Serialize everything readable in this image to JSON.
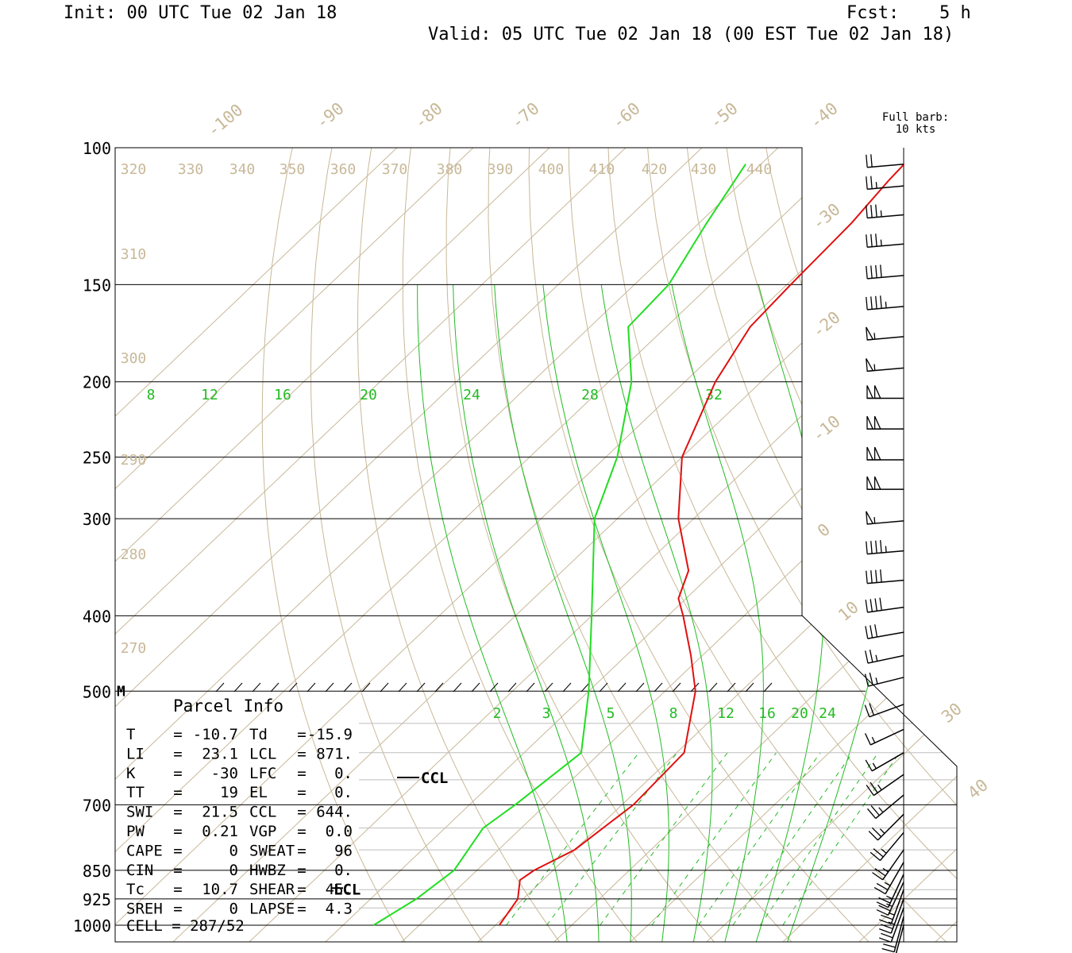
{
  "header": {
    "init": "Init: 00 UTC Tue 02 Jan 18",
    "fcst_label": "Fcst:",
    "fcst_value": "5 h",
    "valid": "Valid: 05 UTC Tue 02 Jan 18 (00 EST Tue 02 Jan 18)"
  },
  "barb_key": {
    "line1": "Full barb:",
    "line2": "10 kts"
  },
  "colors": {
    "temperature": "#e01010",
    "dewpoint": "#22dd22",
    "isotherm_dry_adiabat": "#c8b898",
    "moist_adiabat_mixing_ratio": "#22bb22",
    "isobar": "#000000"
  },
  "chart_data": {
    "type": "line",
    "title": "",
    "xlabel": "",
    "ylabel": "",
    "y_scale": "log-pressure",
    "ylim_hpa": [
      1000,
      100
    ],
    "pressure_ticks": [
      100,
      150,
      200,
      250,
      300,
      400,
      500,
      700,
      850,
      925,
      1000
    ],
    "isotherm_labels": [
      "-100",
      "-90",
      "-80",
      "-70",
      "-60",
      "-50",
      "-40",
      "-30",
      "-20",
      "-10",
      "0",
      "10",
      "30",
      "40"
    ],
    "theta_labels_top": [
      "320",
      "330",
      "340",
      "350",
      "360",
      "370",
      "380",
      "390",
      "400",
      "410",
      "420",
      "430",
      "440"
    ],
    "theta_labels_side": [
      "310",
      "300",
      "290",
      "280",
      "270"
    ],
    "moist_adiabat_labels": [
      "8",
      "12",
      "16",
      "20",
      "24",
      "28",
      "32"
    ],
    "mixing_ratio_labels": [
      "2",
      "3",
      "5",
      "8",
      "12",
      "16",
      "20",
      "24"
    ],
    "series": [
      {
        "name": "temperature",
        "points": [
          {
            "p": 1000,
            "t": -9.5
          },
          {
            "p": 925,
            "t": -10.7
          },
          {
            "p": 875,
            "t": -13.0
          },
          {
            "p": 850,
            "t": -12.5
          },
          {
            "p": 800,
            "t": -10.0
          },
          {
            "p": 700,
            "t": -8.5
          },
          {
            "p": 600,
            "t": -9.0
          },
          {
            "p": 500,
            "t": -16.0
          },
          {
            "p": 450,
            "t": -21.5
          },
          {
            "p": 400,
            "t": -28.0
          },
          {
            "p": 380,
            "t": -31.0
          },
          {
            "p": 350,
            "t": -33.5
          },
          {
            "p": 300,
            "t": -42.0
          },
          {
            "p": 250,
            "t": -50.0
          },
          {
            "p": 200,
            "t": -56.0
          },
          {
            "p": 170,
            "t": -59.0
          },
          {
            "p": 150,
            "t": -59.5
          },
          {
            "p": 125,
            "t": -60.0
          },
          {
            "p": 110,
            "t": -61.0
          },
          {
            "p": 105,
            "t": -61.2
          }
        ]
      },
      {
        "name": "dewpoint",
        "points": [
          {
            "p": 1000,
            "t": -26.0
          },
          {
            "p": 925,
            "t": -24.0
          },
          {
            "p": 850,
            "t": -23.0
          },
          {
            "p": 750,
            "t": -25.0
          },
          {
            "p": 700,
            "t": -24.0
          },
          {
            "p": 600,
            "t": -22.5
          },
          {
            "p": 500,
            "t": -30.0
          },
          {
            "p": 400,
            "t": -40.0
          },
          {
            "p": 300,
            "t": -53.0
          },
          {
            "p": 250,
            "t": -58.5
          },
          {
            "p": 200,
            "t": -67.0
          },
          {
            "p": 170,
            "t": -75.0
          },
          {
            "p": 150,
            "t": -75.5
          },
          {
            "p": 125,
            "t": -79.0
          },
          {
            "p": 105,
            "t": -82.0
          }
        ]
      }
    ],
    "markers": {
      "lcl_label": "LCL",
      "lcl_p": 871,
      "ccl_label": "CCL",
      "ccl_p": 644,
      "m_label": "M",
      "m_p": 500
    },
    "parcel_info": {
      "title": "Parcel Info",
      "rows": [
        [
          "T",
          "-10.7",
          "Td",
          "-15.9"
        ],
        [
          "LI",
          "23.1",
          "LCL",
          "871."
        ],
        [
          "K",
          "-30",
          "LFC",
          "0."
        ],
        [
          "TT",
          "19",
          "EL",
          "0."
        ],
        [
          "SWI",
          "21.5",
          "CCL",
          "644."
        ],
        [
          "PW",
          "0.21",
          "VGP",
          "0.0"
        ],
        [
          "CAPE",
          "0",
          "SWEAT",
          "96"
        ],
        [
          "CIN",
          "0",
          "HWBZ",
          "0."
        ],
        [
          "Tc",
          "10.7",
          "SHEAR",
          "45."
        ],
        [
          "SREH",
          "0",
          "LAPSE",
          "4.3"
        ]
      ],
      "cell_label": "CELL",
      "cell_value": "287/52"
    },
    "wind_barbs": [
      {
        "p": 105,
        "spd": 20,
        "dir": 265
      },
      {
        "p": 112,
        "spd": 25,
        "dir": 265
      },
      {
        "p": 122,
        "spd": 35,
        "dir": 265
      },
      {
        "p": 133,
        "spd": 35,
        "dir": 265
      },
      {
        "p": 146,
        "spd": 40,
        "dir": 265
      },
      {
        "p": 160,
        "spd": 45,
        "dir": 265
      },
      {
        "p": 175,
        "spd": 55,
        "dir": 265
      },
      {
        "p": 192,
        "spd": 55,
        "dir": 265
      },
      {
        "p": 210,
        "spd": 100,
        "dir": 270
      },
      {
        "p": 230,
        "spd": 100,
        "dir": 270
      },
      {
        "p": 252,
        "spd": 100,
        "dir": 270
      },
      {
        "p": 275,
        "spd": 100,
        "dir": 270
      },
      {
        "p": 302,
        "spd": 55,
        "dir": 265
      },
      {
        "p": 330,
        "spd": 45,
        "dir": 265
      },
      {
        "p": 360,
        "spd": 40,
        "dir": 265
      },
      {
        "p": 390,
        "spd": 40,
        "dir": 262
      },
      {
        "p": 420,
        "spd": 30,
        "dir": 260
      },
      {
        "p": 450,
        "spd": 25,
        "dir": 258
      },
      {
        "p": 480,
        "spd": 25,
        "dir": 256
      },
      {
        "p": 520,
        "spd": 20,
        "dir": 250
      },
      {
        "p": 560,
        "spd": 15,
        "dir": 245
      },
      {
        "p": 600,
        "spd": 15,
        "dir": 240
      },
      {
        "p": 640,
        "spd": 25,
        "dir": 235
      },
      {
        "p": 680,
        "spd": 25,
        "dir": 230
      },
      {
        "p": 720,
        "spd": 25,
        "dir": 225
      },
      {
        "p": 760,
        "spd": 25,
        "dir": 220
      },
      {
        "p": 800,
        "spd": 25,
        "dir": 215
      },
      {
        "p": 830,
        "spd": 25,
        "dir": 210
      },
      {
        "p": 860,
        "spd": 25,
        "dir": 205
      },
      {
        "p": 880,
        "spd": 25,
        "dir": 205
      },
      {
        "p": 900,
        "spd": 25,
        "dir": 200
      },
      {
        "p": 925,
        "spd": 25,
        "dir": 200
      },
      {
        "p": 950,
        "spd": 20,
        "dir": 200
      },
      {
        "p": 975,
        "spd": 20,
        "dir": 195
      },
      {
        "p": 1000,
        "spd": 15,
        "dir": 195
      }
    ]
  }
}
